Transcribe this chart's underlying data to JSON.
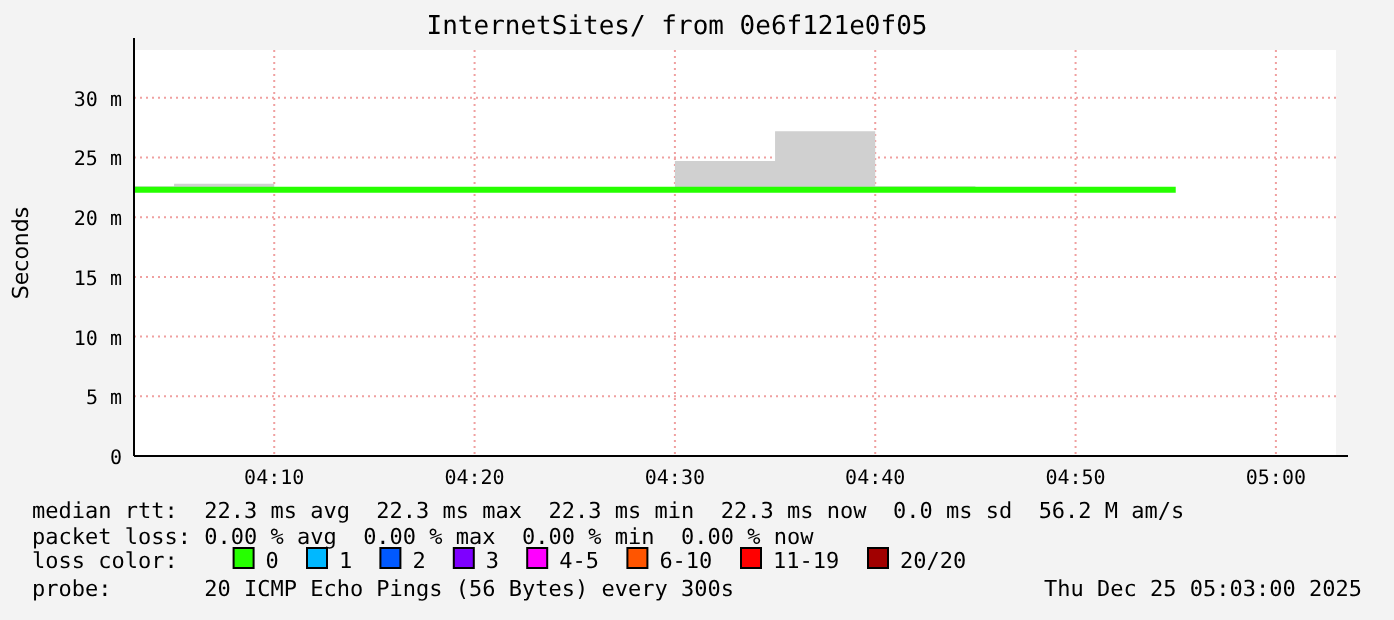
{
  "chart_data": {
    "type": "step",
    "title": "InternetSites/ from 0e6f121e0f05",
    "ylabel": "Seconds",
    "x": [
      "2025-12-25T04:03",
      "2025-12-25T04:05",
      "2025-12-25T04:10",
      "2025-12-25T04:15",
      "2025-12-25T04:20",
      "2025-12-25T04:25",
      "2025-12-25T04:30",
      "2025-12-25T04:35",
      "2025-12-25T04:40",
      "2025-12-25T04:45",
      "2025-12-25T04:50",
      "2025-12-25T04:55"
    ],
    "xlim": [
      "2025-12-25T04:03",
      "2025-12-25T05:03"
    ],
    "xticks": [
      {
        "value": "2025-12-25T04:10",
        "label": "04:10"
      },
      {
        "value": "2025-12-25T04:20",
        "label": "04:20"
      },
      {
        "value": "2025-12-25T04:30",
        "label": "04:30"
      },
      {
        "value": "2025-12-25T04:40",
        "label": "04:40"
      },
      {
        "value": "2025-12-25T04:50",
        "label": "04:50"
      },
      {
        "value": "2025-12-25T05:00",
        "label": "05:00"
      }
    ],
    "ylim": [
      0,
      34
    ],
    "yticks": [
      0,
      {
        "value": 5,
        "label": "5 m"
      },
      {
        "value": 10,
        "label": "10 m"
      },
      {
        "value": 15,
        "label": "15 m"
      },
      {
        "value": 20,
        "label": "20 m"
      },
      {
        "value": 25,
        "label": "25 m"
      },
      {
        "value": 30,
        "label": "30 m"
      }
    ],
    "grid": true,
    "legend": "bottom",
    "legend_title": "loss color:",
    "series": [
      {
        "name": "0",
        "color": "#26ff00",
        "values": [
          22.3,
          22.3,
          22.3,
          22.3,
          22.3,
          22.3,
          22.3,
          22.3,
          22.3,
          22.3,
          22.3,
          22.3
        ],
        "lower": [
          22.3,
          22.3,
          22.3,
          22.3,
          22.3,
          22.3,
          22.3,
          22.3,
          22.3,
          22.3,
          22.3,
          22.3
        ],
        "upper": [
          22.6,
          22.8,
          22.3,
          22.3,
          22.3,
          22.3,
          24.7,
          27.2,
          22.6,
          22.3,
          22.3,
          22.3
        ]
      },
      {
        "name": "1",
        "color": "#00b8ff",
        "values": [
          null,
          null,
          null,
          null,
          null,
          null,
          null,
          null,
          null,
          null,
          null,
          null
        ]
      },
      {
        "name": "2",
        "color": "#0059ff",
        "values": [
          null,
          null,
          null,
          null,
          null,
          null,
          null,
          null,
          null,
          null,
          null,
          null
        ]
      },
      {
        "name": "3",
        "color": "#7e00ff",
        "values": [
          null,
          null,
          null,
          null,
          null,
          null,
          null,
          null,
          null,
          null,
          null,
          null
        ]
      },
      {
        "name": "4-5",
        "color": "#ff00ff",
        "values": [
          null,
          null,
          null,
          null,
          null,
          null,
          null,
          null,
          null,
          null,
          null,
          null
        ]
      },
      {
        "name": "6-10",
        "color": "#ff5500",
        "values": [
          null,
          null,
          null,
          null,
          null,
          null,
          null,
          null,
          null,
          null,
          null,
          null
        ]
      },
      {
        "name": "11-19",
        "color": "#ff0000",
        "values": [
          null,
          null,
          null,
          null,
          null,
          null,
          null,
          null,
          null,
          null,
          null,
          null
        ]
      },
      {
        "name": "20/20",
        "color": "#a10000",
        "values": [
          null,
          null,
          null,
          null,
          null,
          null,
          null,
          null,
          null,
          null,
          null,
          null
        ]
      }
    ],
    "annotations": [
      "median rtt:  22.3 ms avg  22.3 ms max  22.3 ms min  22.3 ms now  0.0 ms sd  56.2 M am/s",
      "packet loss: 0.00 % avg  0.00 % max  0.00 % min  0.00 % now",
      "probe:       20 ICMP Echo Pings (56 Bytes) every 300s",
      "Thu Dec 25 05:03:00 2025"
    ]
  }
}
